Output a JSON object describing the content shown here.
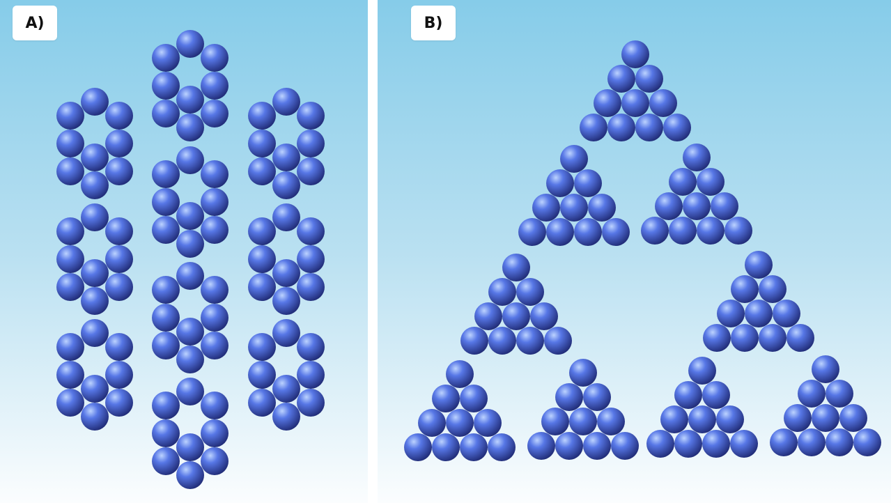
{
  "panels": {
    "a": {
      "label": "A)"
    },
    "b": {
      "label": "B)"
    }
  },
  "colors": {
    "sphere_highlight": "#bcd3ff",
    "sphere_mid": "#5777e6",
    "sphere_dark": "#1f2a74",
    "background_top": "#86cce9",
    "background_bottom": "#fbfdfe"
  }
}
